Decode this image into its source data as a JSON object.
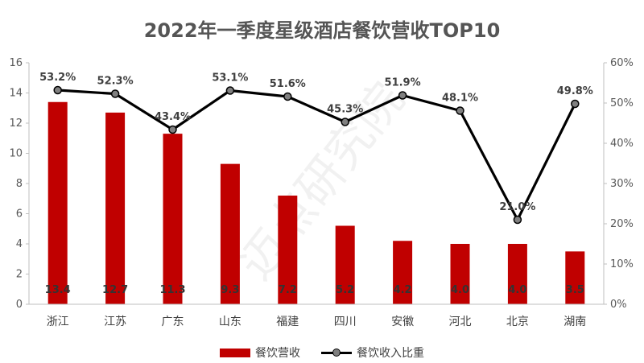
{
  "colors": {
    "bar": "#c00000",
    "line": "#000000",
    "marker": "#808080",
    "axis": "#bfbfbf"
  },
  "chart_data": {
    "type": "bar",
    "title": "2022年一季度星级酒店餐饮营收TOP10",
    "watermark": "迈点研究院",
    "categories": [
      "浙江",
      "江苏",
      "广东",
      "山东",
      "福建",
      "四川",
      "安徽",
      "河北",
      "北京",
      "湖南"
    ],
    "series": [
      {
        "name": "餐饮营收",
        "type": "bar",
        "axis": "left",
        "values": [
          13.4,
          12.7,
          11.3,
          9.3,
          7.2,
          5.2,
          4.2,
          4.0,
          4.0,
          3.5
        ],
        "labels": [
          "13.4",
          "12.7",
          "11.3",
          "9.3",
          "7.2",
          "5.2",
          "4.2",
          "4.0",
          "4.0",
          "3.5"
        ]
      },
      {
        "name": "餐饮收入比重",
        "type": "line",
        "axis": "right",
        "values": [
          53.2,
          52.3,
          43.4,
          53.1,
          51.6,
          45.3,
          51.9,
          48.1,
          21.0,
          49.8
        ],
        "labels": [
          "53.2%",
          "52.3%",
          "43.4%",
          "53.1%",
          "51.6%",
          "45.3%",
          "51.9%",
          "48.1%",
          "21.0%",
          "49.8%"
        ]
      }
    ],
    "y_left": {
      "ylim": [
        0,
        16
      ],
      "ticks": [
        "0",
        "2",
        "4",
        "6",
        "8",
        "10",
        "12",
        "14",
        "16"
      ]
    },
    "y_right": {
      "ylim": [
        0,
        60
      ],
      "ticks": [
        "0%",
        "10%",
        "20%",
        "30%",
        "40%",
        "50%",
        "60%"
      ]
    },
    "grid": false,
    "legend": "bottom"
  }
}
